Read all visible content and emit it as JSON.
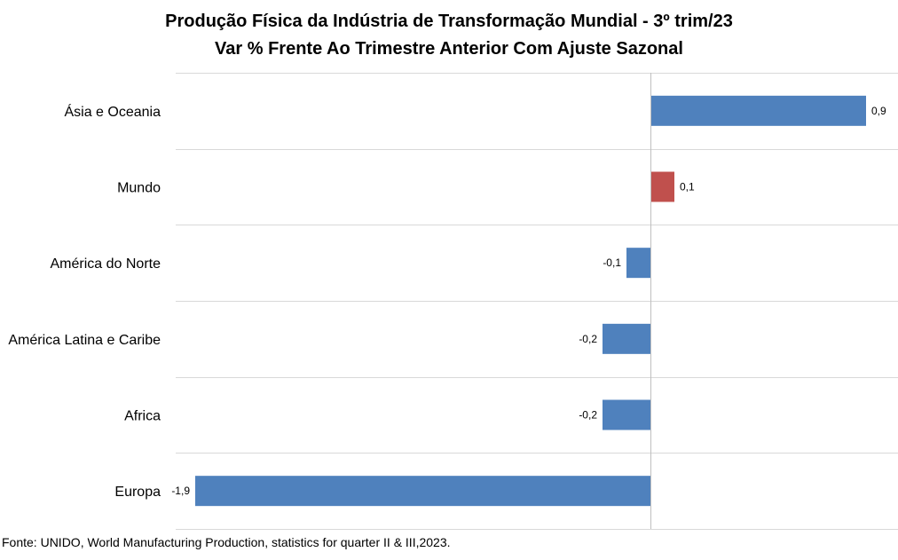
{
  "chart_data": {
    "type": "bar",
    "orientation": "horizontal",
    "title": "Produção Física da Indústria de Transformação Mundial - 3º trim/23",
    "subtitle": "Var % Frente Ao Trimestre Anterior Com Ajuste Sazonal",
    "categories": [
      "Ásia e Oceania",
      "Mundo",
      "América do Norte",
      "América Latina e Caribe",
      "Africa",
      "Europa"
    ],
    "values": [
      0.9,
      0.1,
      -0.1,
      -0.2,
      -0.2,
      -1.9
    ],
    "data_labels": [
      "0,9",
      "0,1",
      "-0,1",
      "-0,2",
      "-0,2",
      "-1,9"
    ],
    "bar_colors": [
      "#4f81bd",
      "#c0504d",
      "#4f81bd",
      "#4f81bd",
      "#4f81bd",
      "#4f81bd"
    ],
    "xlim": [
      -2.1,
      1.1
    ],
    "grid": "horizontal separators",
    "legend": "none"
  },
  "source": "Fonte: UNIDO, World Manufacturing Production,  statistics for quarter II & III,2023."
}
